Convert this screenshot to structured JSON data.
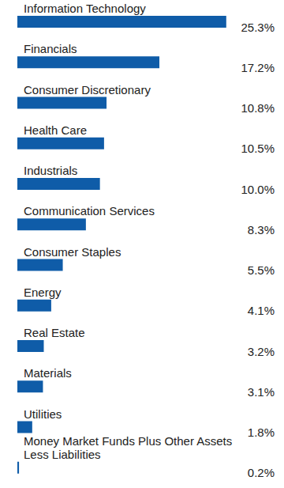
{
  "chart_data": {
    "type": "bar",
    "orientation": "horizontal",
    "categories": [
      "Information Technology",
      "Financials",
      "Consumer Discretionary",
      "Health Care",
      "Industrials",
      "Communication Services",
      "Consumer Staples",
      "Energy",
      "Real Estate",
      "Materials",
      "Utilities",
      "Money Market Funds Plus Other Assets Less Liabilities"
    ],
    "values": [
      25.3,
      17.2,
      10.8,
      10.5,
      10.0,
      8.3,
      5.5,
      4.1,
      3.2,
      3.1,
      1.8,
      0.2
    ],
    "value_labels": [
      "25.3%",
      "17.2%",
      "10.8%",
      "10.5%",
      "10.0%",
      "8.3%",
      "5.5%",
      "4.1%",
      "3.2%",
      "3.1%",
      "1.8%",
      "0.2%"
    ],
    "data_labels": true,
    "color": "#0f5ca8",
    "xlim": [
      0,
      30
    ]
  }
}
